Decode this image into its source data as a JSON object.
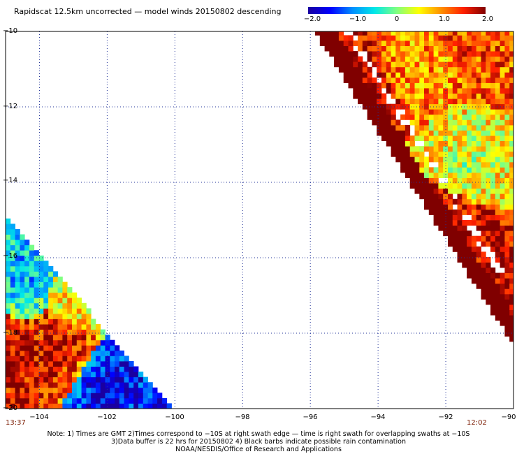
{
  "title": "Rapidscat 12.5km uncorrected — model winds 20150802 descending",
  "colorbar": {
    "ticks": [
      "−2.0",
      "−1.0",
      "0",
      "1.0",
      "2.0"
    ],
    "stops": [
      "#1a00a0",
      "#0000ff",
      "#0090ff",
      "#00e8e8",
      "#80ff80",
      "#ffff00",
      "#ff9000",
      "#ff2000",
      "#800000"
    ]
  },
  "y_axis": {
    "labels": [
      "−10",
      "−12",
      "−14",
      "−16",
      "−18",
      "−20"
    ]
  },
  "x_axis": {
    "labels": [
      "−104",
      "−102",
      "−100",
      "−98",
      "−96",
      "−94",
      "−92",
      "−90"
    ]
  },
  "times": {
    "left": "13:37",
    "right": "12:02"
  },
  "footer": {
    "line1": "Note: 1) Times are GMT 2)Times correspond to −10S at right swath edge — time is right swath for overlapping swaths at −10S",
    "line2": "3)Data buffer is 22 hrs for 20150802 4) Black barbs indicate possible rain contamination",
    "line3": "NOAA/NESDIS/Office of Research and Applications"
  },
  "chart_data": {
    "type": "heatmap",
    "title": "Rapidscat 12.5km uncorrected — model winds 20150802 descending",
    "xlim": [
      -105,
      -90
    ],
    "ylim": [
      -20,
      -10
    ],
    "xticks": [
      -104,
      -102,
      -100,
      -98,
      -96,
      -94,
      -92,
      -90
    ],
    "yticks": [
      -10,
      -12,
      -14,
      -16,
      -18,
      -20
    ],
    "colorbar_range": [
      -2.0,
      2.0
    ],
    "colorbar_ticks": [
      -2.0,
      -1.0,
      0,
      1.0,
      2.0
    ],
    "grid": true,
    "swaths": [
      {
        "region": "left",
        "lon_range": [
          -105,
          -100.2
        ],
        "lat_range": [
          -20,
          -15.0
        ],
        "pass_time": "13:37",
        "typical_values": [
          {
            "lon": -104.8,
            "lat": -18.8,
            "value": 2.0
          },
          {
            "lon": -104.5,
            "lat": -16.5,
            "value": -0.9
          },
          {
            "lon": -103.5,
            "lat": -18.5,
            "value": 2.0
          },
          {
            "lon": -102.0,
            "lat": -19.5,
            "value": -2.0
          },
          {
            "lon": -101.0,
            "lat": -19.8,
            "value": -1.6
          },
          {
            "lon": -102.8,
            "lat": -17.0,
            "value": 0.6
          }
        ]
      },
      {
        "region": "right",
        "lon_range": [
          -96,
          -90
        ],
        "lat_range": [
          -18.5,
          -10
        ],
        "pass_time": "12:02",
        "typical_values": [
          {
            "lon": -95.8,
            "lat": -10.3,
            "value": 1.9
          },
          {
            "lon": -94.5,
            "lat": -11.8,
            "value": 2.0
          },
          {
            "lon": -93.0,
            "lat": -11.0,
            "value": 0.9
          },
          {
            "lon": -91.5,
            "lat": -13.5,
            "value": 0.2
          },
          {
            "lon": -90.5,
            "lat": -17.5,
            "value": 2.0
          },
          {
            "lon": -92.2,
            "lat": -15.2,
            "value": 2.0
          },
          {
            "lon": -91.0,
            "lat": -10.5,
            "value": 1.3
          }
        ]
      }
    ]
  }
}
